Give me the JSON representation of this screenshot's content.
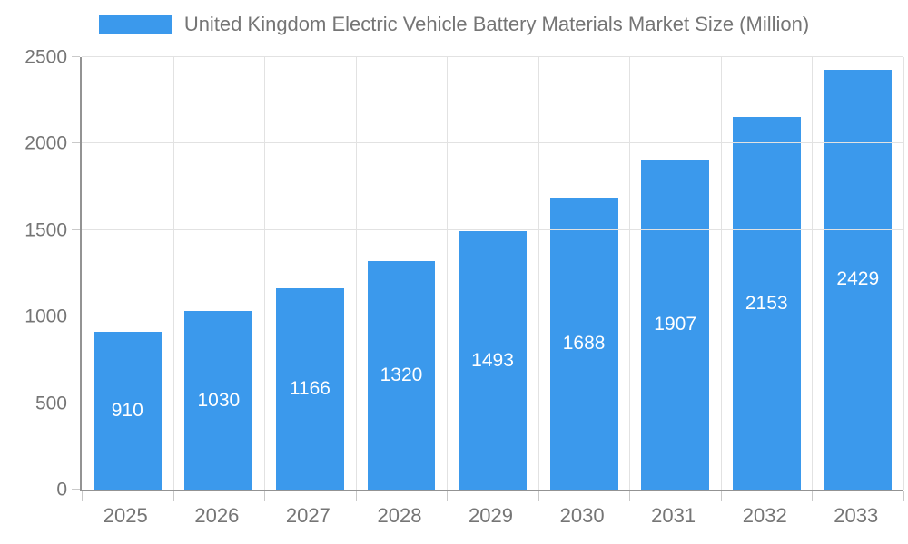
{
  "chart_data": {
    "type": "bar",
    "title": "United Kingdom Electric Vehicle Battery Materials Market Size (Million)",
    "categories": [
      "2025",
      "2026",
      "2027",
      "2028",
      "2029",
      "2030",
      "2031",
      "2032",
      "2033"
    ],
    "values": [
      910,
      1030,
      1166,
      1320,
      1493,
      1688,
      1907,
      2153,
      2429
    ],
    "xlabel": "",
    "ylabel": "",
    "ylim": [
      0,
      2500
    ],
    "y_ticks": [
      0,
      500,
      1000,
      1500,
      2000,
      2500
    ],
    "grid": true,
    "legend_position": "top",
    "value_labels": "centered-in-bar",
    "colors": {
      "bar": "#3B99EC",
      "grid": "#E2E2E2",
      "tick": "#C9C9C9",
      "axis": "#939393",
      "text": "#757575",
      "value_label": "#FFFFFF",
      "background": "#FFFFFF"
    }
  }
}
